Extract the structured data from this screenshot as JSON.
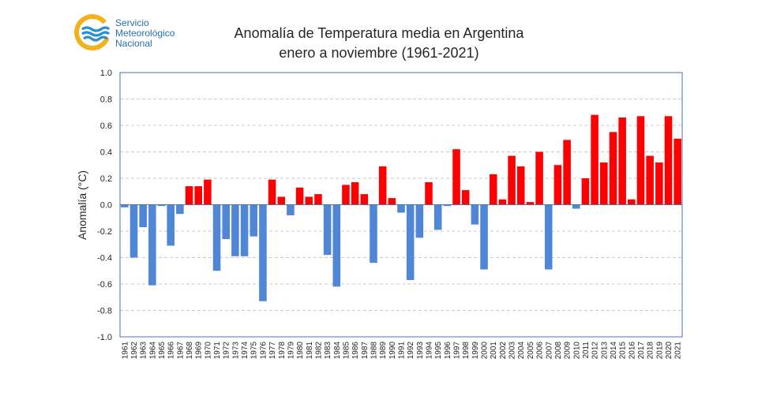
{
  "logo": {
    "line1": "Servicio",
    "line2": "Meteorológico",
    "line3": "Nacional",
    "colors": {
      "ring": "#f2b21f",
      "waves": "#2a8fd0",
      "text": "#2a6fa8"
    }
  },
  "chart_data": {
    "type": "bar",
    "title": "Anomalía de Temperatura media en Argentina",
    "subtitle": "enero a noviembre (1961-2021)",
    "xlabel": "",
    "ylabel": "Anomalía (°C)",
    "ylim": [
      -1.0,
      1.0
    ],
    "yticks": [
      "1.0",
      "0.8",
      "0.6",
      "0.4",
      "0.2",
      "0.0",
      "-0.2",
      "-0.4",
      "-0.6",
      "-0.8",
      "-1.0"
    ],
    "ytick_values": [
      1.0,
      0.8,
      0.6,
      0.4,
      0.2,
      0.0,
      -0.2,
      -0.4,
      -0.6,
      -0.8,
      -1.0
    ],
    "grid": true,
    "colors": {
      "positive": "#ff0000",
      "negative": "#4f86d6",
      "axis": "#4a72b0",
      "grid": "#c8c8c8"
    },
    "categories": [
      "1961",
      "1962",
      "1963",
      "1964",
      "1965",
      "1966",
      "1967",
      "1968",
      "1969",
      "1970",
      "1971",
      "1972",
      "1973",
      "1974",
      "1975",
      "1976",
      "1977",
      "1978",
      "1979",
      "1980",
      "1981",
      "1982",
      "1983",
      "1984",
      "1985",
      "1986",
      "1987",
      "1988",
      "1989",
      "1990",
      "1991",
      "1992",
      "1993",
      "1994",
      "1995",
      "1996",
      "1997",
      "1998",
      "1999",
      "2000",
      "2001",
      "2002",
      "2003",
      "2004",
      "2005",
      "2006",
      "2007",
      "2008",
      "2009",
      "2010",
      "2011",
      "2012",
      "2013",
      "2014",
      "2015",
      "2016",
      "2017",
      "2018",
      "2019",
      "2020",
      "2021"
    ],
    "values": [
      -0.02,
      -0.4,
      -0.17,
      -0.61,
      -0.01,
      -0.31,
      -0.07,
      0.14,
      0.14,
      0.19,
      -0.5,
      -0.26,
      -0.39,
      -0.39,
      -0.24,
      -0.73,
      0.19,
      0.06,
      -0.08,
      0.13,
      0.06,
      0.08,
      -0.38,
      -0.62,
      0.15,
      0.17,
      0.08,
      -0.44,
      0.29,
      0.05,
      -0.06,
      -0.57,
      -0.25,
      0.17,
      -0.19,
      -0.01,
      0.42,
      0.11,
      -0.15,
      -0.49,
      0.23,
      0.04,
      0.37,
      0.29,
      0.02,
      0.4,
      -0.49,
      0.3,
      0.49,
      -0.03,
      0.2,
      0.68,
      0.32,
      0.55,
      0.66,
      0.04,
      0.67,
      0.37,
      0.32,
      0.67,
      0.5
    ]
  }
}
